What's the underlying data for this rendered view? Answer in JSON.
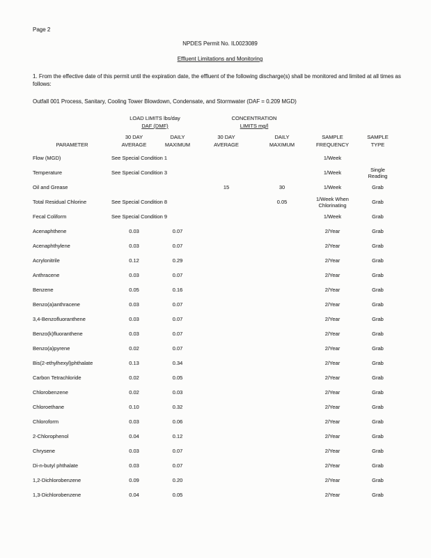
{
  "page": {
    "page_number_label": "Page 2",
    "permit_title": "NPDES Permit No. IL0023089",
    "section_title": "Effluent Limitations and Monitoring",
    "intro_paragraph": "1.   From the effective date of this permit until the expiration date, the effluent of the following discharge(s) shall be monitored and limited at all times as follows:",
    "outfall_line": "Outfall 001   Process, Sanitary, Cooling Tower Blowdown, Condensate, and Stormwater (DAF = 0.209 MGD)"
  },
  "table": {
    "group_headers": {
      "load_line1": "LOAD LIMITS lbs/day",
      "load_line2": "DAF (DMF)",
      "conc_line1": "CONCENTRATION",
      "conc_line2": "LIMITS mg/l"
    },
    "columns": [
      {
        "label": "PARAMETER"
      },
      {
        "label": "30 DAY\nAVERAGE"
      },
      {
        "label": "DAILY\nMAXIMUM"
      },
      {
        "label": "30 DAY\nAVERAGE"
      },
      {
        "label": "DAILY\nMAXIMUM"
      },
      {
        "label": "SAMPLE\nFREQUENCY"
      },
      {
        "label": "SAMPLE\nTYPE"
      }
    ],
    "rows": [
      {
        "param": "Flow (MGD)",
        "note": "See Special Condition 1",
        "conc_avg": "",
        "conc_max": "",
        "freq": "1/Week",
        "type": ""
      },
      {
        "param": "Temperature",
        "note": "See Special Condition 3",
        "conc_avg": "",
        "conc_max": "",
        "freq": "1/Week",
        "type": "Single\nReading"
      },
      {
        "param": "Oil and Grease",
        "load_avg": "",
        "load_max": "",
        "conc_avg": "15",
        "conc_max": "30",
        "freq": "1/Week",
        "type": "Grab"
      },
      {
        "param": "Total Residual Chlorine",
        "note": "See Special Condition 8",
        "conc_avg": "",
        "conc_max": "0.05",
        "freq": "1/Week When\nChlorinating",
        "type": "Grab"
      },
      {
        "param": "Fecal Coliform",
        "note": "See Special Condition 9",
        "conc_avg": "",
        "conc_max": "",
        "freq": "1/Week",
        "type": "Grab"
      },
      {
        "param": "Acenaphthene",
        "load_avg": "0.03",
        "load_max": "0.07",
        "conc_avg": "",
        "conc_max": "",
        "freq": "2/Year",
        "type": "Grab"
      },
      {
        "param": "Acenaphthylene",
        "load_avg": "0.03",
        "load_max": "0.07",
        "conc_avg": "",
        "conc_max": "",
        "freq": "2/Year",
        "type": "Grab"
      },
      {
        "param": "Acrylonitrile",
        "load_avg": "0.12",
        "load_max": "0.29",
        "conc_avg": "",
        "conc_max": "",
        "freq": "2/Year",
        "type": "Grab"
      },
      {
        "param": "Anthracene",
        "load_avg": "0.03",
        "load_max": "0.07",
        "conc_avg": "",
        "conc_max": "",
        "freq": "2/Year",
        "type": "Grab"
      },
      {
        "param": "Benzene",
        "load_avg": "0.05",
        "load_max": "0.16",
        "conc_avg": "",
        "conc_max": "",
        "freq": "2/Year",
        "type": "Grab"
      },
      {
        "param": "Benzo(a)anthracene",
        "load_avg": "0.03",
        "load_max": "0.07",
        "conc_avg": "",
        "conc_max": "",
        "freq": "2/Year",
        "type": "Grab"
      },
      {
        "param": "3,4-Benzofluoranthene",
        "load_avg": "0.03",
        "load_max": "0.07",
        "conc_avg": "",
        "conc_max": "",
        "freq": "2/Year",
        "type": "Grab"
      },
      {
        "param": "Benzo(k)fluoranthene",
        "load_avg": "0.03",
        "load_max": "0.07",
        "conc_avg": "",
        "conc_max": "",
        "freq": "2/Year",
        "type": "Grab"
      },
      {
        "param": "Benzo(a)pyrene",
        "load_avg": "0.02",
        "load_max": "0.07",
        "conc_avg": "",
        "conc_max": "",
        "freq": "2/Year",
        "type": "Grab"
      },
      {
        "param": "Bis(2-ethylhexyl)phthalate",
        "load_avg": "0.13",
        "load_max": "0.34",
        "conc_avg": "",
        "conc_max": "",
        "freq": "2/Year",
        "type": "Grab"
      },
      {
        "param": "Carbon Tetrachloride",
        "load_avg": "0.02",
        "load_max": "0.05",
        "conc_avg": "",
        "conc_max": "",
        "freq": "2/Year",
        "type": "Grab"
      },
      {
        "param": "Chlorobenzene",
        "load_avg": "0.02",
        "load_max": "0.03",
        "conc_avg": "",
        "conc_max": "",
        "freq": "2/Year",
        "type": "Grab"
      },
      {
        "param": "Chloroethane",
        "load_avg": "0.10",
        "load_max": "0.32",
        "conc_avg": "",
        "conc_max": "",
        "freq": "2/Year",
        "type": "Grab"
      },
      {
        "param": "Chloroform",
        "load_avg": "0.03",
        "load_max": "0.06",
        "conc_avg": "",
        "conc_max": "",
        "freq": "2/Year",
        "type": "Grab"
      },
      {
        "param": "2-Chlorophenol",
        "load_avg": "0.04",
        "load_max": "0.12",
        "conc_avg": "",
        "conc_max": "",
        "freq": "2/Year",
        "type": "Grab"
      },
      {
        "param": "Chrysene",
        "load_avg": "0.03",
        "load_max": "0.07",
        "conc_avg": "",
        "conc_max": "",
        "freq": "2/Year",
        "type": "Grab"
      },
      {
        "param": "Di-n-butyl phthalate",
        "load_avg": "0.03",
        "load_max": "0.07",
        "conc_avg": "",
        "conc_max": "",
        "freq": "2/Year",
        "type": "Grab"
      },
      {
        "param": "1,2-Dichlorobenzene",
        "load_avg": "0.09",
        "load_max": "0.20",
        "conc_avg": "",
        "conc_max": "",
        "freq": "2/Year",
        "type": "Grab"
      },
      {
        "param": "1,3-Dichlorobenzene",
        "load_avg": "0.04",
        "load_max": "0.05",
        "conc_avg": "",
        "conc_max": "",
        "freq": "2/Year",
        "type": "Grab"
      }
    ]
  },
  "colors": {
    "page_background": "#fcfcfb",
    "text": "#3c3c3c"
  }
}
